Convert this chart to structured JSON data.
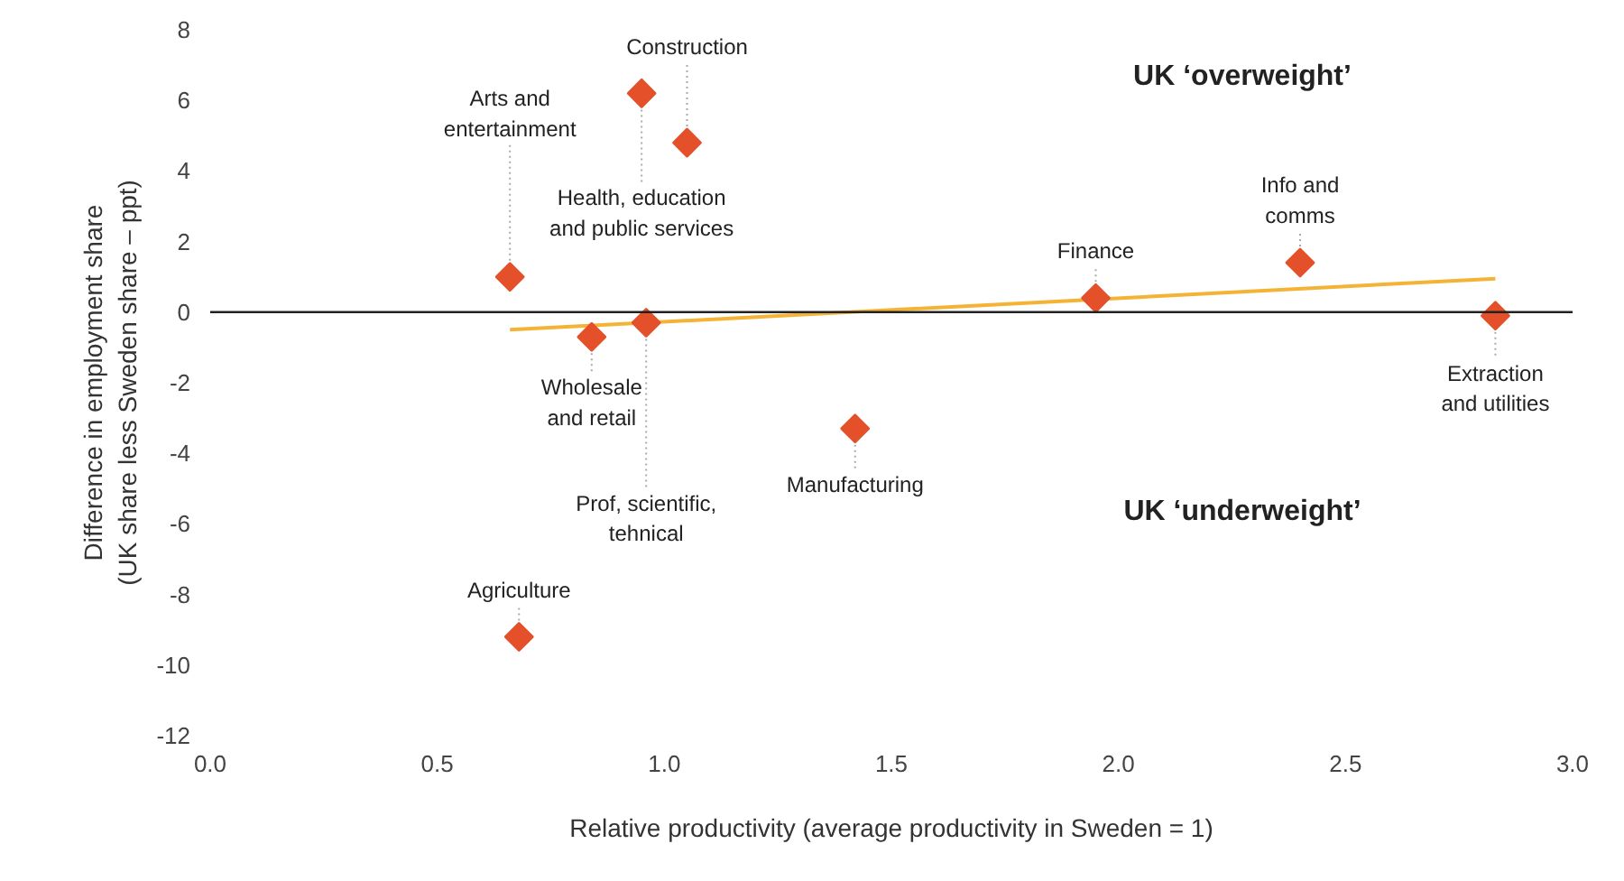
{
  "chart_data": {
    "type": "scatter",
    "xlabel": "Relative productivity (average productivity in Sweden = 1)",
    "ylabel": "Difference in employment share\n(UK share less Sweden share – ppt)",
    "series": [
      {
        "color": "#e4502a",
        "marker": "diamond",
        "x": [
          0.66,
          0.95,
          1.05,
          0.84,
          0.96,
          1.42,
          0.68,
          1.95,
          2.4,
          2.83
        ],
        "values": [
          1.0,
          6.2,
          4.8,
          -0.7,
          -0.3,
          -3.3,
          -9.2,
          0.4,
          1.4,
          -0.1
        ]
      },
      {
        "type": "line",
        "color": "#f5b335",
        "marker": "none",
        "line_style": "solid",
        "x": [
          0.66,
          2.83
        ],
        "values": [
          -0.5,
          0.95
        ]
      }
    ],
    "annotations": [
      {
        "text": "Arts and\nentertainment",
        "x": 0.66,
        "y": 1.0
      },
      {
        "text": "Health, education\nand public services",
        "x": 0.95,
        "y": 6.2
      },
      {
        "text": "Construction",
        "x": 1.05,
        "y": 4.8
      },
      {
        "text": "Wholesale\nand retail",
        "x": 0.84,
        "y": -0.7
      },
      {
        "text": "Prof, scientific,\ntehnical",
        "x": 0.96,
        "y": -0.3
      },
      {
        "text": "Manufacturing",
        "x": 1.42,
        "y": -3.3
      },
      {
        "text": "Agriculture",
        "x": 0.68,
        "y": -9.2
      },
      {
        "text": "Finance",
        "x": 1.95,
        "y": 0.4
      },
      {
        "text": "Info and\ncomms",
        "x": 2.4,
        "y": 1.4
      },
      {
        "text": "Extraction\nand utilities",
        "x": 2.83,
        "y": -0.1
      },
      "UK ‘overweight’",
      "UK ‘underweight’"
    ],
    "ref_lines": [
      {
        "axis": "y",
        "value": 0,
        "color": "#222222"
      }
    ],
    "xlim": [
      0,
      3.0
    ],
    "xticks": [
      {
        "value": 0,
        "label": "0.0"
      },
      0.5,
      {
        "value": 1,
        "label": "1.0"
      },
      1.5,
      {
        "value": 2,
        "label": "2.0"
      },
      2.5,
      {
        "value": 3,
        "label": "3.0"
      }
    ],
    "ylim": [
      -12,
      8
    ],
    "yticks": [
      -12,
      -10,
      -8,
      -6,
      -4,
      -2,
      0,
      2,
      4,
      6,
      8
    ],
    "grid": false
  }
}
